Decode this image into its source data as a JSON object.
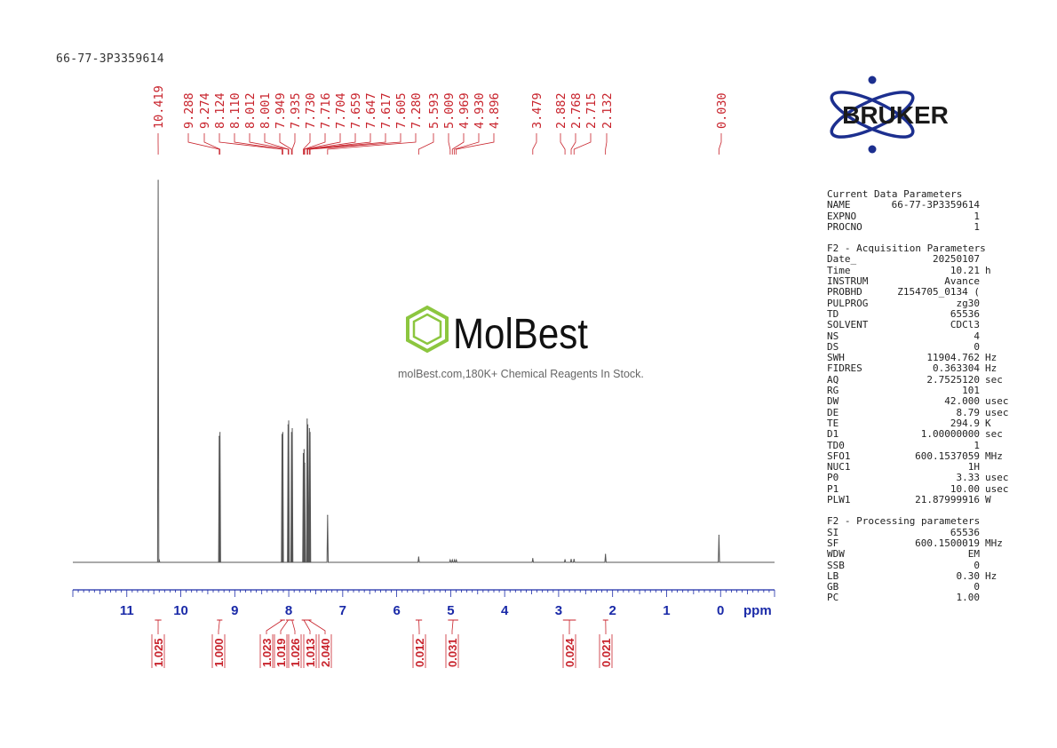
{
  "sample_title": "66-77-3P3359614",
  "brand": "BRUKER",
  "watermark": {
    "name": "MolBest",
    "tagline": "molBest.com,180K+ Chemical Reagents In Stock."
  },
  "params": [
    {
      "title": "Current Data Parameters",
      "rows": [
        {
          "k": "NAME",
          "v": "66-77-3P3359614",
          "u": ""
        },
        {
          "k": "EXPNO",
          "v": "1",
          "u": ""
        },
        {
          "k": "PROCNO",
          "v": "1",
          "u": ""
        }
      ]
    },
    {
      "title": "F2 - Acquisition Parameters",
      "rows": [
        {
          "k": "Date_",
          "v": "20250107",
          "u": ""
        },
        {
          "k": "Time",
          "v": "10.21",
          "u": "h"
        },
        {
          "k": "INSTRUM",
          "v": "Avance",
          "u": ""
        },
        {
          "k": "PROBHD",
          "v": "Z154705_0134 (",
          "u": ""
        },
        {
          "k": "PULPROG",
          "v": "zg30",
          "u": ""
        },
        {
          "k": "TD",
          "v": "65536",
          "u": ""
        },
        {
          "k": "SOLVENT",
          "v": "CDCl3",
          "u": ""
        },
        {
          "k": "NS",
          "v": "4",
          "u": ""
        },
        {
          "k": "DS",
          "v": "0",
          "u": ""
        },
        {
          "k": "SWH",
          "v": "11904.762",
          "u": "Hz"
        },
        {
          "k": "FIDRES",
          "v": "0.363304",
          "u": "Hz"
        },
        {
          "k": "AQ",
          "v": "2.7525120",
          "u": "sec"
        },
        {
          "k": "RG",
          "v": "101",
          "u": ""
        },
        {
          "k": "DW",
          "v": "42.000",
          "u": "usec"
        },
        {
          "k": "DE",
          "v": "8.79",
          "u": "usec"
        },
        {
          "k": "TE",
          "v": "294.9",
          "u": "K"
        },
        {
          "k": "D1",
          "v": "1.00000000",
          "u": "sec"
        },
        {
          "k": "TD0",
          "v": "1",
          "u": ""
        },
        {
          "k": "SFO1",
          "v": "600.1537059",
          "u": "MHz"
        },
        {
          "k": "NUC1",
          "v": "1H",
          "u": ""
        },
        {
          "k": "P0",
          "v": "3.33",
          "u": "usec"
        },
        {
          "k": "P1",
          "v": "10.00",
          "u": "usec"
        },
        {
          "k": "PLW1",
          "v": "21.87999916",
          "u": "W"
        }
      ]
    },
    {
      "title": "F2 - Processing parameters",
      "rows": [
        {
          "k": "SI",
          "v": "65536",
          "u": ""
        },
        {
          "k": "SF",
          "v": "600.1500019",
          "u": "MHz"
        },
        {
          "k": "WDW",
          "v": "EM",
          "u": ""
        },
        {
          "k": "SSB",
          "v": "0",
          "u": ""
        },
        {
          "k": "LB",
          "v": "0.30",
          "u": "Hz"
        },
        {
          "k": "GB",
          "v": "0",
          "u": ""
        },
        {
          "k": "PC",
          "v": "1.00",
          "u": ""
        }
      ]
    }
  ],
  "chart_data": {
    "type": "line",
    "xlabel": "ppm",
    "xlim": [
      12.0,
      -1.0
    ],
    "x_reversed": true,
    "ticks": [
      11,
      10,
      9,
      8,
      7,
      6,
      5,
      4,
      3,
      2,
      1,
      0
    ],
    "peak_labels": [
      "10.419",
      "9.288",
      "9.274",
      "8.124",
      "8.110",
      "8.012",
      "8.001",
      "7.949",
      "7.935",
      "7.730",
      "7.716",
      "7.704",
      "7.659",
      "7.647",
      "7.617",
      "7.605",
      "7.280",
      "5.593",
      "5.009",
      "4.969",
      "4.930",
      "4.896",
      "3.479",
      "2.882",
      "2.768",
      "2.715",
      "2.132",
      "0.030"
    ],
    "peaks": [
      {
        "ppm": 10.419,
        "height": 1.0
      },
      {
        "ppm": 10.4,
        "height": 0.006
      },
      {
        "ppm": 9.288,
        "height": 0.33
      },
      {
        "ppm": 9.274,
        "height": 0.34
      },
      {
        "ppm": 8.124,
        "height": 0.335
      },
      {
        "ppm": 8.11,
        "height": 0.34
      },
      {
        "ppm": 8.012,
        "height": 0.36
      },
      {
        "ppm": 8.001,
        "height": 0.37
      },
      {
        "ppm": 7.949,
        "height": 0.34
      },
      {
        "ppm": 7.935,
        "height": 0.35
      },
      {
        "ppm": 7.73,
        "height": 0.285
      },
      {
        "ppm": 7.716,
        "height": 0.295
      },
      {
        "ppm": 7.704,
        "height": 0.26
      },
      {
        "ppm": 7.659,
        "height": 0.375
      },
      {
        "ppm": 7.647,
        "height": 0.36
      },
      {
        "ppm": 7.617,
        "height": 0.35
      },
      {
        "ppm": 7.605,
        "height": 0.34
      },
      {
        "ppm": 7.28,
        "height": 0.123
      },
      {
        "ppm": 5.593,
        "height": 0.014
      },
      {
        "ppm": 5.009,
        "height": 0.006
      },
      {
        "ppm": 4.969,
        "height": 0.006
      },
      {
        "ppm": 4.93,
        "height": 0.006
      },
      {
        "ppm": 4.896,
        "height": 0.006
      },
      {
        "ppm": 3.479,
        "height": 0.01
      },
      {
        "ppm": 2.882,
        "height": 0.007
      },
      {
        "ppm": 2.768,
        "height": 0.008
      },
      {
        "ppm": 2.715,
        "height": 0.008
      },
      {
        "ppm": 2.132,
        "height": 0.021
      },
      {
        "ppm": 0.03,
        "height": 0.071
      }
    ],
    "integrals": [
      {
        "from": 10.48,
        "to": 10.36,
        "value": "1.025"
      },
      {
        "from": 9.33,
        "to": 9.23,
        "value": "1.000"
      },
      {
        "from": 8.16,
        "to": 8.07,
        "value": "1.023"
      },
      {
        "from": 8.05,
        "to": 7.97,
        "value": "1.019"
      },
      {
        "from": 7.98,
        "to": 7.9,
        "value": "1.026"
      },
      {
        "from": 7.76,
        "to": 7.68,
        "value": "1.013"
      },
      {
        "from": 7.69,
        "to": 7.58,
        "value": "2.040"
      },
      {
        "from": 5.65,
        "to": 5.53,
        "value": "0.012"
      },
      {
        "from": 5.05,
        "to": 4.86,
        "value": "0.031"
      },
      {
        "from": 2.92,
        "to": 2.68,
        "value": "0.024"
      },
      {
        "from": 2.18,
        "to": 2.08,
        "value": "0.021"
      }
    ]
  }
}
